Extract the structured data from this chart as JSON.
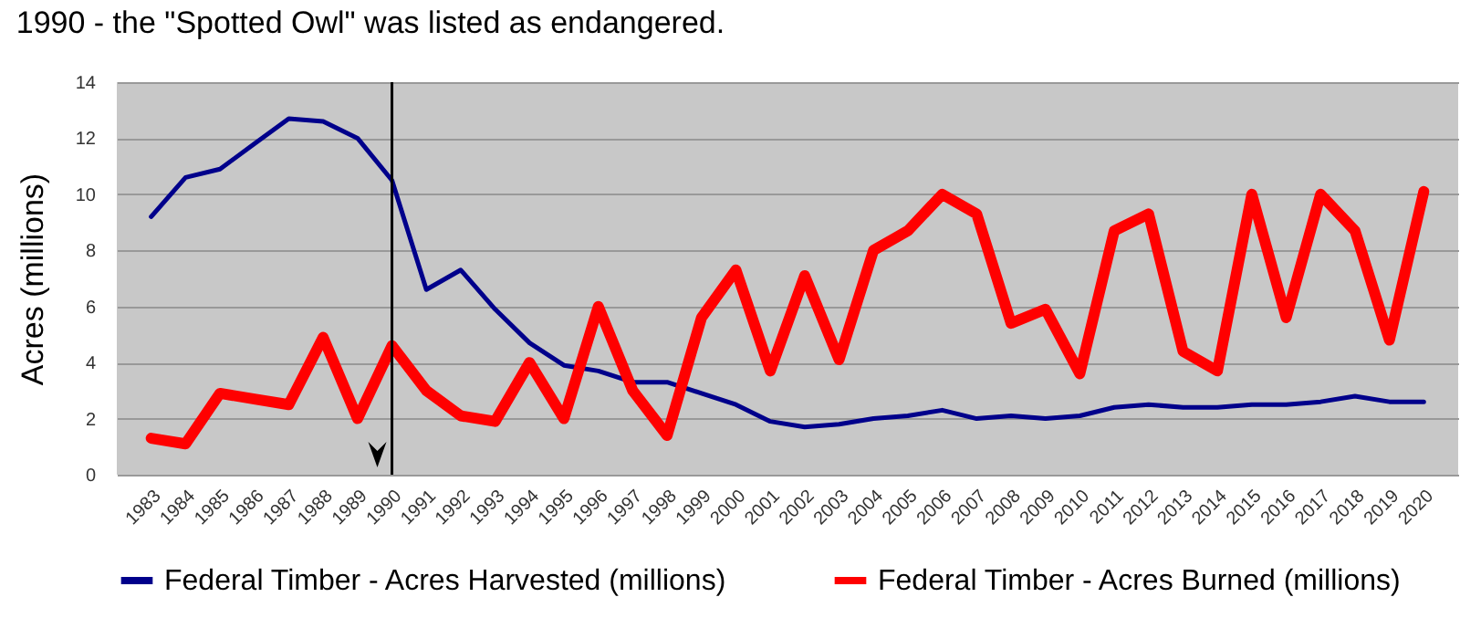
{
  "chart_data": {
    "type": "line",
    "ref_lines": [
      {
        "axis": "x",
        "value": "1990",
        "label": "1990 - the \"Spotted Owl\" was listed as endangered.",
        "color": "#000000"
      }
    ],
    "ylabel": "Acres (millions)",
    "categories": [
      "1983",
      "1984",
      "1985",
      "1986",
      "1987",
      "1988",
      "1989",
      "1990",
      "1991",
      "1992",
      "1993",
      "1994",
      "1995",
      "1996",
      "1997",
      "1998",
      "1999",
      "2000",
      "2001",
      "2002",
      "2003",
      "2004",
      "2005",
      "2006",
      "2007",
      "2008",
      "2009",
      "2010",
      "2011",
      "2012",
      "2013",
      "2014",
      "2015",
      "2016",
      "2017",
      "2018",
      "2019",
      "2020"
    ],
    "series": [
      {
        "name": "Federal Timber - Acres Harvested (millions)",
        "color": "#00008b",
        "values": [
          9.2,
          10.6,
          10.9,
          11.8,
          12.7,
          12.6,
          12.0,
          10.5,
          6.6,
          7.3,
          5.9,
          4.7,
          3.9,
          3.7,
          3.3,
          3.3,
          2.9,
          2.5,
          1.9,
          1.7,
          1.8,
          2.0,
          2.1,
          2.3,
          2.0,
          2.1,
          2.0,
          2.1,
          2.4,
          2.5,
          2.4,
          2.4,
          2.5,
          2.5,
          2.6,
          2.8,
          2.6,
          2.6
        ]
      },
      {
        "name": "Federal Timber - Acres Burned (millions)",
        "color": "#ff0000",
        "values": [
          1.3,
          1.1,
          2.9,
          2.7,
          2.5,
          4.9,
          2.0,
          4.6,
          3.0,
          2.1,
          1.9,
          4.0,
          2.0,
          6.0,
          3.0,
          1.4,
          5.6,
          7.3,
          3.7,
          7.1,
          4.1,
          8.0,
          8.7,
          10.0,
          9.3,
          5.4,
          5.9,
          3.6,
          8.7,
          9.3,
          4.4,
          3.7,
          10.0,
          5.6,
          10.0,
          8.7,
          4.8,
          10.1
        ]
      }
    ],
    "ylim": [
      0,
      14
    ],
    "yticks": [
      0,
      2,
      4,
      6,
      8,
      10,
      12,
      14
    ],
    "grid": "y",
    "legend": "bottom",
    "marker": "none",
    "line_style": "solid"
  }
}
